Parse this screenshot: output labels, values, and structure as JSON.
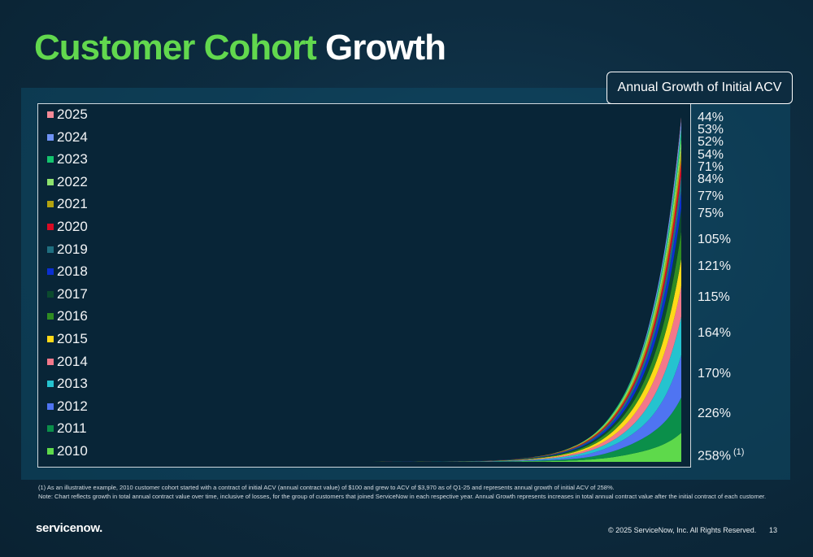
{
  "slide": {
    "title_part1": "Customer Cohort",
    "title_part2": "Growth",
    "acv_box_label": "Annual Growth of Initial ACV",
    "footnote_line1": "(1) As an illustrative example, 2010 customer cohort started with a contract of initial ACV (annual contract value) of $100 and grew to ACV of $3,970 as of Q1-25 and represents annual growth of initial ACV of 258%.",
    "footnote_line2": "Note: Chart reflects growth in total annual contract value over time, inclusive of losses, for the group of customers that joined ServiceNow in each respective year.  Annual Growth represents increases in total annual contract value after the initial contract of each customer.",
    "logo": "servicenow.",
    "copyright": "© 2025 ServiceNow, Inc. All Rights Reserved.",
    "page_number": "13",
    "footnote_marker": "(1)"
  },
  "chart_data": {
    "type": "area",
    "stacked": true,
    "legend_position": "left",
    "series": [
      {
        "name": "2010",
        "color": "#5ed94b",
        "start": 0,
        "end": 38,
        "growth": "258%"
      },
      {
        "name": "2011",
        "color": "#0b8f4a",
        "start": 0,
        "end": 46,
        "growth": "226%"
      },
      {
        "name": "2012",
        "color": "#4f74f2",
        "start": 0.5,
        "end": 50,
        "growth": "170%"
      },
      {
        "name": "2013",
        "color": "#25c3cf",
        "start": 1.0,
        "end": 45,
        "growth": "164%"
      },
      {
        "name": "2014",
        "color": "#f2788a",
        "start": 1.5,
        "end": 40,
        "growth": "115%"
      },
      {
        "name": "2015",
        "color": "#ffd919",
        "start": 2.0,
        "end": 35,
        "growth": "121%"
      },
      {
        "name": "2016",
        "color": "#2f8c22",
        "start": 2.5,
        "end": 32,
        "growth": "105%"
      },
      {
        "name": "2017",
        "color": "#0b4a2e",
        "start": 3.0,
        "end": 27,
        "growth": "75%"
      },
      {
        "name": "2018",
        "color": "#0b2fd1",
        "start": 3.5,
        "end": 23,
        "growth": "77%"
      },
      {
        "name": "2019",
        "color": "#1f6f80",
        "start": 4.0,
        "end": 20,
        "growth": "84%"
      },
      {
        "name": "2020",
        "color": "#d90b24",
        "start": 4.5,
        "end": 16,
        "growth": "71%"
      },
      {
        "name": "2021",
        "color": "#b3a20f",
        "start": 5.0,
        "end": 15,
        "growth": "54%"
      },
      {
        "name": "2022",
        "color": "#8de26e",
        "start": 5.5,
        "end": 14,
        "growth": "52%"
      },
      {
        "name": "2023",
        "color": "#14c46e",
        "start": 6.0,
        "end": 12,
        "growth": "53%"
      },
      {
        "name": "2024",
        "color": "#6f93f5",
        "start": 6.5,
        "end": 10,
        "growth": "44%"
      },
      {
        "name": "2025",
        "color": "#f58a97",
        "start": 7.0,
        "end": 5
      }
    ],
    "x_range": [
      0,
      7.2
    ]
  }
}
